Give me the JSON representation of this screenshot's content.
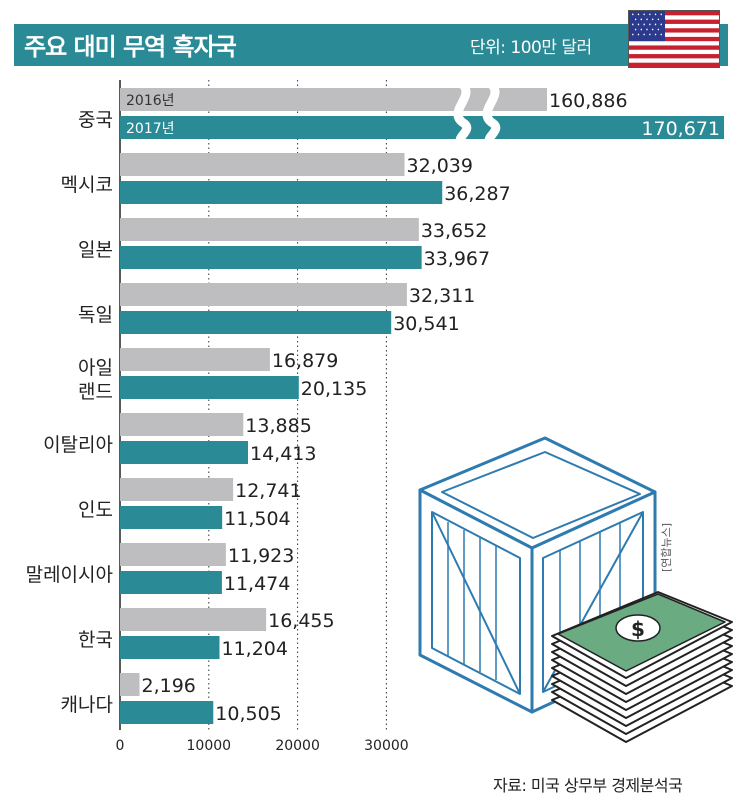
{
  "title": "주요 대미 무역 흑자국",
  "unit": "단위: 100만 달러",
  "source": "자료: 미국 상무부 경제분석국",
  "watermark": "[연합뉴스]",
  "colors": {
    "header": "#2a8a96",
    "series_2016": "#bebec0",
    "series_2017": "#2a8a96",
    "crate": "#2e7bb0",
    "money": "#6aab82"
  },
  "icons": [
    "us-flag-icon",
    "crate-icon",
    "money-stack-icon"
  ],
  "chart_data": {
    "type": "bar",
    "orientation": "horizontal",
    "title": "주요 대미 무역 흑자국",
    "unit": "단위: 100만 달러",
    "categories": [
      "중국",
      "멕시코",
      "일본",
      "독일",
      "아일랜드",
      "이탈리아",
      "인도",
      "말레이시아",
      "한국",
      "캐나다"
    ],
    "series": [
      {
        "name": "2016년",
        "values": [
          160886,
          32039,
          33652,
          32311,
          16879,
          13885,
          12741,
          11923,
          16455,
          2196
        ],
        "labels": [
          "160,886",
          "32,039",
          "33,652",
          "32,311",
          "16,879",
          "13,885",
          "12,741",
          "11,923",
          "16,455",
          "2,196"
        ]
      },
      {
        "name": "2017년",
        "values": [
          170671,
          36287,
          33967,
          30541,
          20135,
          14413,
          11504,
          11474,
          11204,
          10505
        ],
        "labels": [
          "170,671",
          "36,287",
          "33,967",
          "30,541",
          "20,135",
          "14,413",
          "11,504",
          "11,474",
          "11,204",
          "10,505"
        ]
      }
    ],
    "xticks": [
      0,
      10000,
      20000,
      30000
    ],
    "xlim": [
      0,
      40000
    ],
    "axis_break": true,
    "grid": "dotted vertical",
    "legend": "inside first bars"
  }
}
